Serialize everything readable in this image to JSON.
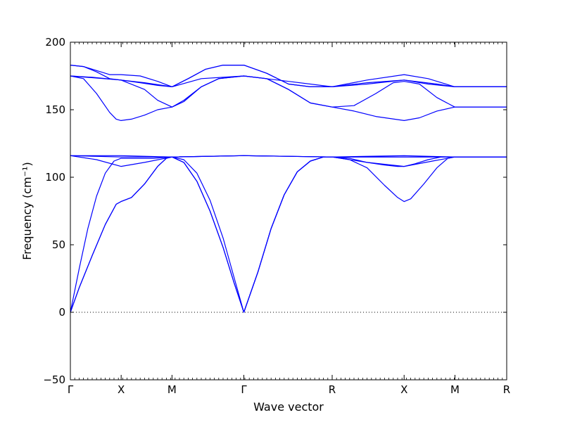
{
  "chart_data": {
    "type": "line",
    "title": "",
    "xlabel": "Wave vector",
    "ylabel": "Frequency (cm⁻¹)",
    "ylim": [
      -50,
      200
    ],
    "yticks": [
      -50,
      0,
      50,
      100,
      150,
      200
    ],
    "xlim": [
      0,
      1
    ],
    "high_symmetry_points": [
      {
        "label": "Γ",
        "x": 0.0
      },
      {
        "label": "X",
        "x": 0.1164
      },
      {
        "label": "M",
        "x": 0.2329
      },
      {
        "label": "Γ",
        "x": 0.3976
      },
      {
        "label": "R",
        "x": 0.6
      },
      {
        "label": "X",
        "x": 0.7649
      },
      {
        "label": "M",
        "x": 0.8814
      },
      {
        "label": "R",
        "x": 1.0
      }
    ],
    "zero_line": {
      "y": 0,
      "style": "dotted"
    },
    "line_color": "#0000ff",
    "series": [
      {
        "values": [
          [
            0,
            0
          ],
          [
            0.02,
            18
          ],
          [
            0.05,
            42
          ],
          [
            0.08,
            65
          ],
          [
            0.105,
            80
          ],
          [
            0.116,
            82
          ],
          [
            0.14,
            85
          ],
          [
            0.17,
            95
          ],
          [
            0.2,
            108
          ],
          [
            0.22,
            114
          ],
          [
            0.233,
            115
          ],
          [
            0.26,
            111
          ],
          [
            0.29,
            97
          ],
          [
            0.32,
            75
          ],
          [
            0.35,
            48
          ],
          [
            0.375,
            22
          ],
          [
            0.3976,
            0
          ],
          [
            0.43,
            30
          ],
          [
            0.46,
            62
          ],
          [
            0.49,
            87
          ],
          [
            0.52,
            104
          ],
          [
            0.55,
            112
          ],
          [
            0.58,
            115
          ],
          [
            0.6,
            115
          ],
          [
            0.64,
            113
          ],
          [
            0.68,
            107
          ],
          [
            0.72,
            94
          ],
          [
            0.75,
            85
          ],
          [
            0.765,
            82
          ],
          [
            0.78,
            84
          ],
          [
            0.81,
            95
          ],
          [
            0.84,
            107
          ],
          [
            0.865,
            114
          ],
          [
            0.881,
            115
          ],
          [
            0.94,
            115
          ],
          [
            1.0,
            115
          ]
        ]
      },
      {
        "values": [
          [
            0,
            0
          ],
          [
            0.02,
            18
          ],
          [
            0.05,
            42
          ],
          [
            0.08,
            65
          ],
          [
            0.105,
            80
          ],
          [
            0.116,
            82
          ],
          [
            0.14,
            85
          ],
          [
            0.17,
            95
          ],
          [
            0.2,
            108
          ],
          [
            0.22,
            114
          ],
          [
            0.233,
            115
          ],
          [
            0.26,
            111
          ],
          [
            0.29,
            97
          ],
          [
            0.32,
            75
          ],
          [
            0.35,
            48
          ],
          [
            0.375,
            22
          ],
          [
            0.3976,
            0
          ],
          [
            0.43,
            30
          ],
          [
            0.46,
            62
          ],
          [
            0.49,
            87
          ],
          [
            0.52,
            104
          ],
          [
            0.55,
            112
          ],
          [
            0.58,
            115
          ],
          [
            0.6,
            115
          ],
          [
            0.64,
            114
          ],
          [
            0.68,
            111
          ],
          [
            0.72,
            109
          ],
          [
            0.75,
            108
          ],
          [
            0.765,
            108
          ],
          [
            0.79,
            110
          ],
          [
            0.82,
            113
          ],
          [
            0.85,
            115
          ],
          [
            0.881,
            115
          ],
          [
            0.94,
            115
          ],
          [
            1.0,
            115
          ]
        ]
      },
      {
        "values": [
          [
            0,
            0
          ],
          [
            0.02,
            32
          ],
          [
            0.04,
            62
          ],
          [
            0.06,
            86
          ],
          [
            0.08,
            103
          ],
          [
            0.1,
            112
          ],
          [
            0.116,
            114
          ],
          [
            0.15,
            114
          ],
          [
            0.19,
            114
          ],
          [
            0.233,
            115
          ],
          [
            0.26,
            113
          ],
          [
            0.29,
            103
          ],
          [
            0.32,
            83
          ],
          [
            0.35,
            55
          ],
          [
            0.375,
            26
          ],
          [
            0.3976,
            0
          ],
          [
            0.43,
            30
          ],
          [
            0.46,
            62
          ],
          [
            0.49,
            87
          ],
          [
            0.52,
            104
          ],
          [
            0.55,
            112
          ],
          [
            0.58,
            115
          ],
          [
            0.6,
            115
          ],
          [
            0.7,
            115
          ],
          [
            0.765,
            115
          ],
          [
            0.85,
            115
          ],
          [
            0.881,
            115
          ],
          [
            0.94,
            115
          ],
          [
            1.0,
            115
          ]
        ]
      },
      {
        "values": [
          [
            0,
            116
          ],
          [
            0.06,
            113
          ],
          [
            0.116,
            108
          ],
          [
            0.17,
            111
          ],
          [
            0.233,
            115
          ],
          [
            0.3976,
            116
          ],
          [
            0.6,
            115
          ],
          [
            0.68,
            111
          ],
          [
            0.765,
            108
          ],
          [
            0.83,
            112
          ],
          [
            0.881,
            115
          ],
          [
            1.0,
            115
          ]
        ]
      },
      {
        "values": [
          [
            0,
            116
          ],
          [
            0.116,
            116
          ],
          [
            0.233,
            115
          ],
          [
            0.3976,
            116
          ],
          [
            0.6,
            115
          ],
          [
            0.765,
            116
          ],
          [
            0.881,
            115
          ],
          [
            1.0,
            115
          ]
        ]
      },
      {
        "values": [
          [
            0,
            116
          ],
          [
            0.116,
            115
          ],
          [
            0.233,
            115
          ],
          [
            0.3976,
            116
          ],
          [
            0.6,
            115
          ],
          [
            0.765,
            115
          ],
          [
            0.881,
            115
          ],
          [
            1.0,
            115
          ]
        ]
      },
      {
        "values": [
          [
            0,
            175
          ],
          [
            0.03,
            173
          ],
          [
            0.06,
            162
          ],
          [
            0.09,
            148
          ],
          [
            0.105,
            143
          ],
          [
            0.116,
            142
          ],
          [
            0.14,
            143
          ],
          [
            0.17,
            146
          ],
          [
            0.2,
            150
          ],
          [
            0.233,
            152
          ],
          [
            0.26,
            157
          ],
          [
            0.3,
            167
          ],
          [
            0.34,
            173
          ],
          [
            0.3976,
            175
          ],
          [
            0.45,
            173
          ],
          [
            0.5,
            165
          ],
          [
            0.55,
            155
          ],
          [
            0.6,
            152
          ],
          [
            0.65,
            149
          ],
          [
            0.7,
            145
          ],
          [
            0.765,
            142
          ],
          [
            0.8,
            144
          ],
          [
            0.84,
            149
          ],
          [
            0.881,
            152
          ],
          [
            0.94,
            152
          ],
          [
            1.0,
            152
          ]
        ]
      },
      {
        "values": [
          [
            0,
            175
          ],
          [
            0.05,
            174
          ],
          [
            0.116,
            172
          ],
          [
            0.17,
            165
          ],
          [
            0.2,
            157
          ],
          [
            0.233,
            152
          ],
          [
            0.26,
            156
          ],
          [
            0.3,
            167
          ],
          [
            0.34,
            173
          ],
          [
            0.3976,
            175
          ],
          [
            0.45,
            173
          ],
          [
            0.5,
            165
          ],
          [
            0.55,
            155
          ],
          [
            0.6,
            152
          ],
          [
            0.65,
            153
          ],
          [
            0.7,
            162
          ],
          [
            0.74,
            170
          ],
          [
            0.765,
            171
          ],
          [
            0.8,
            169
          ],
          [
            0.84,
            159
          ],
          [
            0.881,
            152
          ],
          [
            0.94,
            152
          ],
          [
            1.0,
            152
          ]
        ]
      },
      {
        "values": [
          [
            0,
            175
          ],
          [
            0.116,
            172
          ],
          [
            0.17,
            170
          ],
          [
            0.233,
            167
          ],
          [
            0.3,
            173
          ],
          [
            0.3976,
            175
          ],
          [
            0.5,
            171
          ],
          [
            0.6,
            167
          ],
          [
            0.68,
            169
          ],
          [
            0.765,
            172
          ],
          [
            0.84,
            169
          ],
          [
            0.881,
            167
          ],
          [
            1.0,
            167
          ]
        ]
      },
      {
        "values": [
          [
            0,
            183
          ],
          [
            0.03,
            182
          ],
          [
            0.06,
            178
          ],
          [
            0.09,
            173
          ],
          [
            0.116,
            172
          ],
          [
            0.16,
            170
          ],
          [
            0.2,
            168
          ],
          [
            0.233,
            167
          ],
          [
            0.27,
            173
          ],
          [
            0.31,
            180
          ],
          [
            0.35,
            183
          ],
          [
            0.3976,
            183
          ],
          [
            0.45,
            177
          ],
          [
            0.5,
            169
          ],
          [
            0.55,
            167
          ],
          [
            0.6,
            167
          ],
          [
            0.68,
            170
          ],
          [
            0.765,
            172
          ],
          [
            0.82,
            169
          ],
          [
            0.881,
            167
          ],
          [
            1.0,
            167
          ]
        ]
      },
      {
        "values": [
          [
            0,
            183
          ],
          [
            0.03,
            182
          ],
          [
            0.06,
            179
          ],
          [
            0.09,
            176
          ],
          [
            0.116,
            176
          ],
          [
            0.16,
            175
          ],
          [
            0.2,
            171
          ],
          [
            0.233,
            167
          ],
          [
            0.27,
            173
          ],
          [
            0.31,
            180
          ],
          [
            0.35,
            183
          ],
          [
            0.3976,
            183
          ],
          [
            0.45,
            177
          ],
          [
            0.5,
            169
          ],
          [
            0.55,
            167
          ],
          [
            0.6,
            167
          ],
          [
            0.68,
            172
          ],
          [
            0.765,
            176
          ],
          [
            0.82,
            173
          ],
          [
            0.881,
            167
          ],
          [
            1.0,
            167
          ]
        ]
      }
    ]
  }
}
